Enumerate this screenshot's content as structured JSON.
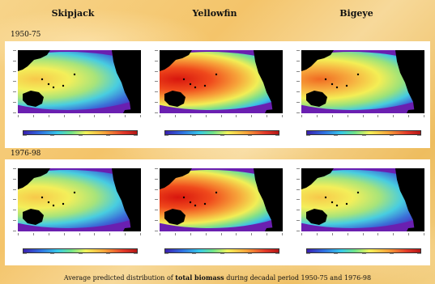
{
  "columns": [
    "Skipjack",
    "Yellowfin",
    "Bigeye"
  ],
  "periods": [
    "1950-75",
    "1976-98"
  ],
  "caption": {
    "before": "Average predicted distribution of ",
    "bold": "total biomass",
    "after": " during decadal period 1950-75 and 1976-98"
  },
  "colors": {
    "ocean_low": "#6a1fb0",
    "land": "#000000",
    "high": "#e02a1a"
  },
  "panels": [
    {
      "species": "Skipjack",
      "period": "1950-75",
      "intensity": 0.45
    },
    {
      "species": "Yellowfin",
      "period": "1950-75",
      "intensity": 0.85
    },
    {
      "species": "Bigeye",
      "period": "1950-75",
      "intensity": 0.7
    },
    {
      "species": "Skipjack",
      "period": "1976-98",
      "intensity": 0.5
    },
    {
      "species": "Yellowfin",
      "period": "1976-98",
      "intensity": 0.9
    },
    {
      "species": "Bigeye",
      "period": "1976-98",
      "intensity": 0.4
    }
  ]
}
